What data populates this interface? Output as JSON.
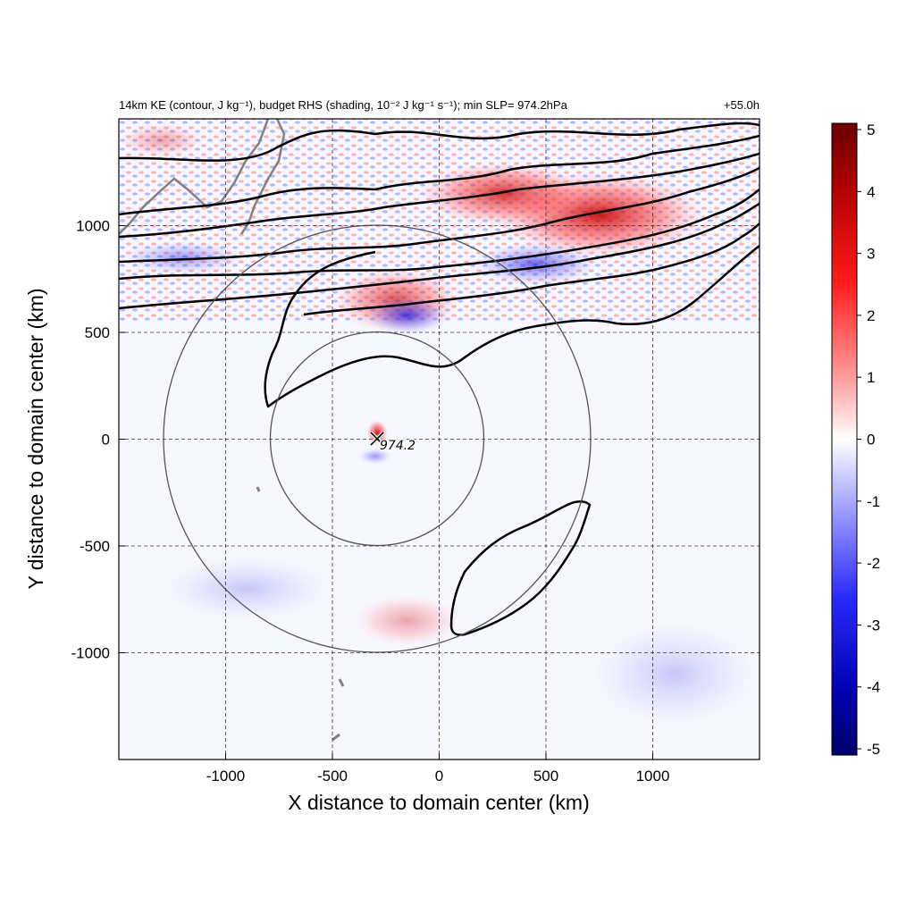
{
  "title": {
    "main": "14km KE (contour, J kg⁻¹), budget RHS (shading, 10⁻² J kg⁻¹ s⁻¹); min SLP= 974.2hPa",
    "time": "+55.0h"
  },
  "colors": {
    "positive": "#d01010",
    "negative": "#1a1ae0",
    "contour": "#000000",
    "circle": "#555555",
    "coast": "#808080"
  },
  "chart_data": {
    "type": "heatmap",
    "xlabel": "X distance to domain center (km)",
    "ylabel": "Y distance to domain center (km)",
    "xlim": [
      -1500,
      1500
    ],
    "ylim": [
      -1500,
      1500
    ],
    "xticks": [
      -1000,
      -500,
      0,
      500,
      1000
    ],
    "yticks": [
      -1000,
      -500,
      0,
      500,
      1000
    ],
    "xtick_labels": [
      "-1000",
      "-500",
      "0",
      "500",
      "1000"
    ],
    "ytick_labels": [
      "-1000",
      "-500",
      "0",
      "500",
      "1000"
    ],
    "grid": true,
    "colorbar": {
      "range": [
        -5,
        5
      ],
      "ticks": [
        5,
        4,
        3,
        2,
        1,
        0,
        -1,
        -2,
        -3,
        -4,
        -5
      ],
      "tick_labels": [
        "5",
        "4",
        "3",
        "2",
        "1",
        "0",
        "-1",
        "-2",
        "-3",
        "-4",
        "-5"
      ]
    },
    "storm_center": {
      "x": -290,
      "y": 0,
      "label": "974.2"
    },
    "range_circles_km": [
      500,
      1000
    ],
    "shading_features": [
      {
        "kind": "positive",
        "x": 750,
        "y": 1050,
        "rx": 500,
        "ry": 200,
        "value": 4.5
      },
      {
        "kind": "positive",
        "x": 300,
        "y": 1150,
        "rx": 400,
        "ry": 150,
        "value": 3.5
      },
      {
        "kind": "positive",
        "x": -200,
        "y": 650,
        "rx": 300,
        "ry": 150,
        "value": 3.0
      },
      {
        "kind": "negative",
        "x": -150,
        "y": 580,
        "rx": 200,
        "ry": 90,
        "value": -3.5
      },
      {
        "kind": "negative",
        "x": 450,
        "y": 820,
        "rx": 300,
        "ry": 100,
        "value": -3.0
      },
      {
        "kind": "negative",
        "x": -1200,
        "y": 850,
        "rx": 300,
        "ry": 80,
        "value": -2.0
      },
      {
        "kind": "positive",
        "x": -290,
        "y": 30,
        "rx": 50,
        "ry": 60,
        "value": 4.0
      },
      {
        "kind": "negative",
        "x": -300,
        "y": -80,
        "rx": 80,
        "ry": 40,
        "value": -2.0
      },
      {
        "kind": "positive",
        "x": -150,
        "y": -850,
        "rx": 250,
        "ry": 120,
        "value": 1.5
      },
      {
        "kind": "negative",
        "x": -900,
        "y": -700,
        "rx": 400,
        "ry": 150,
        "value": -1.0
      },
      {
        "kind": "negative",
        "x": 1100,
        "y": -1100,
        "rx": 400,
        "ry": 250,
        "value": -1.0
      },
      {
        "kind": "positive",
        "x": -1300,
        "y": 1400,
        "rx": 200,
        "ry": 80,
        "value": 1.5
      }
    ]
  }
}
